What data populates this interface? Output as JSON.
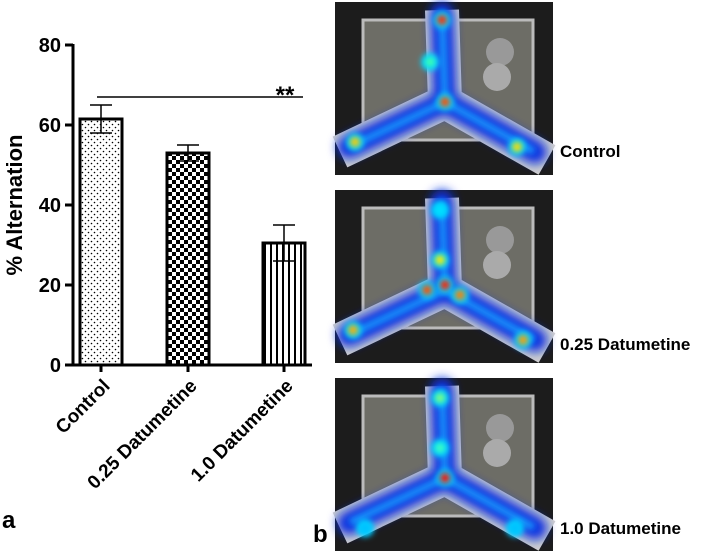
{
  "chart_data": {
    "type": "bar",
    "ylabel": "% Alternation",
    "categories": [
      "Control",
      "0.25 Datumetine",
      "1.0 Datumetine"
    ],
    "values": [
      61.5,
      53,
      30.5
    ],
    "errors": [
      3.5,
      2,
      4.5
    ],
    "patterns": [
      "dots",
      "checker",
      "stripes"
    ],
    "ylim": [
      0,
      80
    ],
    "yticks": [
      0,
      20,
      40,
      60,
      80
    ],
    "significance_label": "**",
    "panel_label": "a"
  },
  "heatmaps": {
    "panel_label": "b",
    "labels": [
      "Control",
      "0.25 Datumetine",
      "1.0 Datumetine"
    ]
  }
}
